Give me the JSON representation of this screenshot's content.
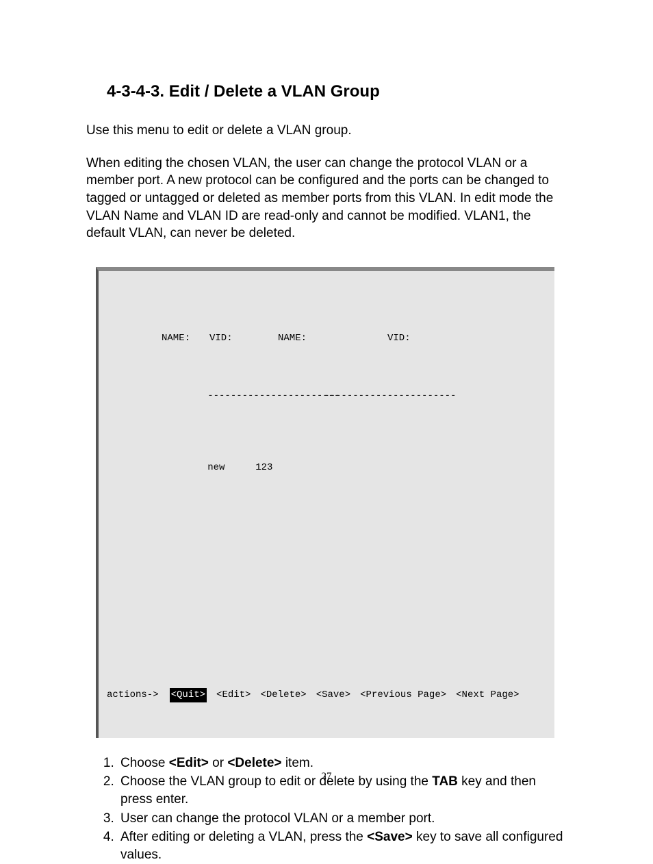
{
  "heading": "4-3-4-3. Edit / Delete a VLAN Group",
  "para1": "Use this menu to edit or delete a VLAN group.",
  "para2": "When editing the chosen VLAN, the user can change the protocol VLAN or a member port.  A new protocol can be configured and the ports can be changed to tagged or untagged or deleted as member ports from this VLAN.  In edit mode the VLAN Name and VLAN ID are read-only and cannot be modified. VLAN1, the default VLAN, can never be deleted.",
  "terminal": {
    "headers": {
      "name1": "NAME:",
      "vid1": "VID:",
      "name2": "NAME:",
      "vid2": "VID:"
    },
    "dash1": "-----------------------",
    "dash2": "-----------------------",
    "rows": [
      {
        "name": "new",
        "vid": "123"
      }
    ],
    "actions_label": "actions->",
    "actions": [
      {
        "label": "<Quit>",
        "selected": true
      },
      {
        "label": "<Edit>",
        "selected": false
      },
      {
        "label": "<Delete>",
        "selected": false
      },
      {
        "label": "<Save>",
        "selected": false
      },
      {
        "label": "<Previous Page>",
        "selected": false
      },
      {
        "label": "<Next Page>",
        "selected": false
      }
    ]
  },
  "steps": {
    "s1a": "Choose ",
    "s1b": "<Edit>",
    "s1c": " or ",
    "s1d": "<Delete>",
    "s1e": " item.",
    "s2a": "Choose the VLAN group to edit or delete by using the ",
    "s2b": "TAB",
    "s2c": " key and then press enter.",
    "s3": "User can change the protocol VLAN or a member port.",
    "s4a": "After editing or deleting a VLAN, press the ",
    "s4b": "<Save>",
    "s4c": " key to save all configured values."
  },
  "page_number": "27"
}
